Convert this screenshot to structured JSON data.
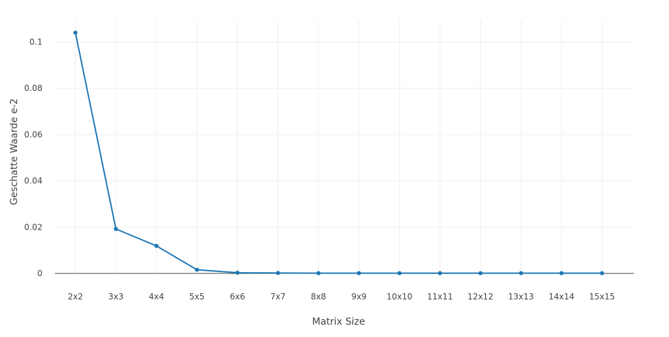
{
  "chart_data": {
    "type": "line",
    "title": "",
    "xlabel": "Matrix Size",
    "ylabel": "Geschatte Waarde e-2",
    "categories": [
      "2x2",
      "3x3",
      "4x4",
      "5x5",
      "6x6",
      "7x7",
      "8x8",
      "9x9",
      "10x10",
      "11x11",
      "12x12",
      "13x13",
      "14x14",
      "15x15"
    ],
    "series": [
      {
        "values": [
          0.104,
          0.0192,
          0.0119,
          0.0016,
          0.0003,
          0.0002,
          0.0001,
          0.0001,
          0.0001,
          0.0001,
          0.0001,
          0.0001,
          0.0001,
          0.0001
        ]
      }
    ],
    "yticks": [
      0,
      0.02,
      0.04,
      0.06,
      0.08,
      0.1
    ],
    "ylim": [
      0,
      0.104
    ],
    "grid": true,
    "legend": "none",
    "colors": {
      "line": "#1f77b4",
      "grid": "#eeeeee",
      "zeroline": "#444444"
    }
  }
}
